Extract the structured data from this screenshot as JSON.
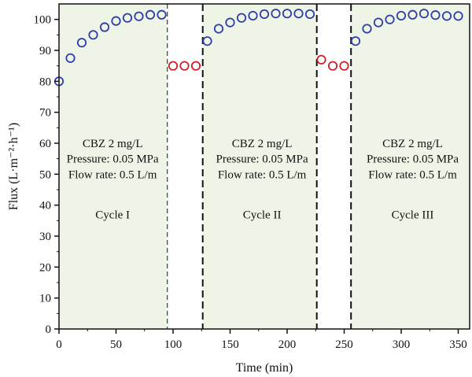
{
  "chart_data": {
    "type": "scatter",
    "title": "",
    "xlabel": "Time (min)",
    "ylabel": "Flux (L·m⁻²·h⁻¹)",
    "xlim": [
      0,
      360
    ],
    "ylim": [
      0,
      105
    ],
    "xticks": [
      0,
      50,
      100,
      150,
      200,
      250,
      300,
      350
    ],
    "yticks": [
      0,
      10,
      20,
      30,
      40,
      50,
      60,
      70,
      80,
      90,
      100
    ],
    "grid": false,
    "legend": "none",
    "colors": {
      "cycle_shade": "#eef5e6",
      "cycle_series": "#2e3da8",
      "rinse_series": "#cc1f2a",
      "boundary_line": "#111111"
    },
    "shaded_regions": [
      {
        "x0": 0,
        "x1": 95
      },
      {
        "x0": 126,
        "x1": 226
      },
      {
        "x0": 256,
        "x1": 360
      }
    ],
    "boundaries": [
      {
        "x": 95,
        "style": "dashed-thin"
      },
      {
        "x": 126,
        "style": "dashed-thick"
      },
      {
        "x": 226,
        "style": "dashed-thick"
      },
      {
        "x": 256,
        "style": "dashed-thick"
      }
    ],
    "annotations": [
      {
        "center_x": 47,
        "lines": [
          "CBZ 2 mg/L",
          "Pressure: 0.05 MPa",
          "Flow rate: 0.5 L/m"
        ],
        "y_values": [
          60,
          55,
          50
        ],
        "label": "Cycle I",
        "label_y": 37
      },
      {
        "center_x": 178,
        "lines": [
          "CBZ 2 mg/L",
          "Pressure: 0.05 MPa",
          "Flow rate: 0.5 L/m"
        ],
        "y_values": [
          60,
          55,
          50
        ],
        "label": "Cycle II",
        "label_y": 37
      },
      {
        "center_x": 310,
        "lines": [
          "CBZ 2 mg/L",
          "Pressure: 0.05 MPa",
          "Flow rate: 0.5 L/m"
        ],
        "y_values": [
          60,
          55,
          50
        ],
        "label": "Cycle III",
        "label_y": 37
      }
    ],
    "series": [
      {
        "color": "blue",
        "x": [
          0,
          10,
          20,
          30,
          40,
          50,
          60,
          70,
          80,
          90,
          130,
          140,
          150,
          160,
          170,
          180,
          190,
          200,
          210,
          220,
          260,
          270,
          280,
          290,
          300,
          310,
          320,
          330,
          340,
          350
        ],
        "y": [
          80,
          87.5,
          92.5,
          95,
          97.5,
          99.5,
          100.5,
          101,
          101.5,
          101.5,
          93,
          97,
          99,
          100.5,
          101.2,
          101.7,
          101.9,
          101.9,
          101.9,
          101.7,
          93,
          97,
          99,
          100,
          101.2,
          101.5,
          101.9,
          101.4,
          101.1,
          101.1
        ]
      },
      {
        "color": "red",
        "x": [
          100,
          110,
          120,
          230,
          240,
          250
        ],
        "y": [
          85,
          85,
          85,
          87,
          85,
          85
        ]
      }
    ]
  }
}
